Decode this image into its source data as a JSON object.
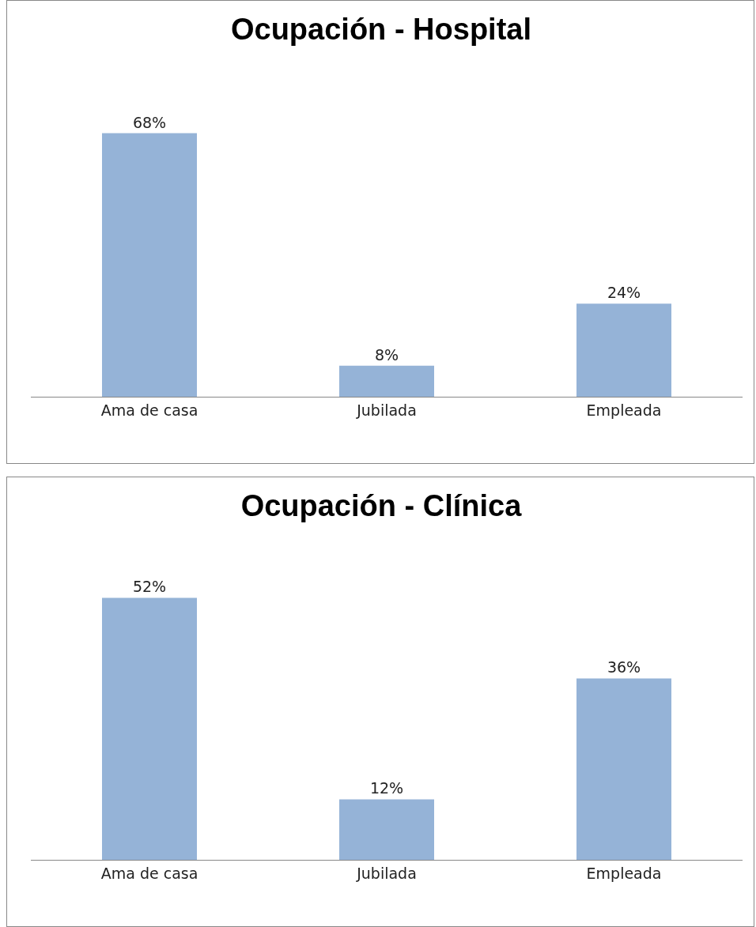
{
  "chart_data": [
    {
      "type": "bar",
      "title": "Ocupación - Hospital",
      "categories": [
        "Ama de casa",
        "Jubilada",
        "Empleada"
      ],
      "values": [
        68,
        8,
        24
      ],
      "value_labels": [
        "68%",
        "8%",
        "24%"
      ],
      "color": "#95b3d7"
    },
    {
      "type": "bar",
      "title": "Ocupación - Clínica",
      "categories": [
        "Ama de casa",
        "Jubilada",
        "Empleada"
      ],
      "values": [
        52,
        12,
        36
      ],
      "value_labels": [
        "52%",
        "12%",
        "36%"
      ],
      "color": "#95b3d7"
    }
  ]
}
